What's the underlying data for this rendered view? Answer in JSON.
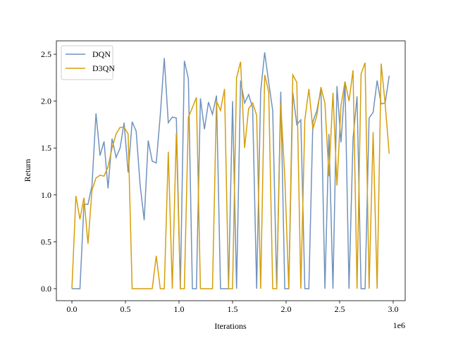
{
  "chart_data": {
    "type": "line",
    "xlabel": "Iterations",
    "ylabel": "Return",
    "x_offset_label": "1e6",
    "x": [
      0,
      0.0375,
      0.075,
      0.1125,
      0.15,
      0.1875,
      0.225,
      0.2625,
      0.3,
      0.3375,
      0.375,
      0.4125,
      0.45,
      0.4875,
      0.525,
      0.5625,
      0.6,
      0.6375,
      0.675,
      0.7125,
      0.75,
      0.7875,
      0.825,
      0.8625,
      0.9,
      0.9375,
      0.975,
      1.0125,
      1.05,
      1.0875,
      1.125,
      1.1625,
      1.2,
      1.2375,
      1.275,
      1.3125,
      1.35,
      1.3875,
      1.425,
      1.4625,
      1.5,
      1.5375,
      1.575,
      1.6125,
      1.65,
      1.6875,
      1.725,
      1.7625,
      1.8,
      1.8375,
      1.875,
      1.9125,
      1.95,
      1.9875,
      2.025,
      2.0625,
      2.1,
      2.1375,
      2.175,
      2.2125,
      2.25,
      2.2875,
      2.325,
      2.3625,
      2.4,
      2.4375,
      2.475,
      2.5125,
      2.55,
      2.5875,
      2.625,
      2.6625,
      2.7,
      2.7375,
      2.775,
      2.8125,
      2.85,
      2.8875,
      2.925,
      2.9625
    ],
    "series": [
      {
        "name": "DQN",
        "color": "#7092be",
        "values": [
          0,
          0,
          0,
          0.9,
          0.9,
          1.1,
          1.87,
          1.42,
          1.57,
          1.07,
          1.6,
          1.4,
          1.5,
          1.77,
          1.24,
          1.78,
          1.68,
          1.1,
          0.73,
          1.58,
          1.36,
          1.34,
          1.85,
          2.46,
          1.77,
          1.83,
          1.82,
          0,
          2.43,
          2.24,
          0,
          0,
          2.03,
          1.7,
          1.99,
          1.86,
          2.06,
          0,
          0,
          0,
          2.0,
          0,
          2.22,
          1.98,
          2.07,
          1.93,
          0,
          2.1,
          2.52,
          2.2,
          1.9,
          0,
          2.1,
          0,
          0,
          2.09,
          1.75,
          1.8,
          0,
          0,
          1.78,
          1.9,
          2.13,
          0,
          1.65,
          0,
          2.16,
          1.56,
          2.2,
          0,
          1.6,
          2.05,
          0,
          0,
          1.82,
          1.88,
          2.22,
          1.97,
          1.98,
          2.27
        ]
      },
      {
        "name": "D3QN",
        "color": "#d69e0c",
        "values": [
          0,
          0.99,
          0.74,
          0.97,
          0.48,
          1.05,
          1.18,
          1.21,
          1.2,
          1.3,
          1.5,
          1.65,
          1.72,
          1.72,
          1.65,
          0,
          0,
          0,
          0,
          0,
          0,
          0.35,
          0,
          0,
          1.46,
          0,
          1.66,
          0,
          0,
          1.83,
          1.93,
          2.04,
          0,
          0,
          0,
          0,
          2.0,
          1.9,
          2.13,
          0,
          0,
          2.25,
          2.42,
          1.5,
          1.92,
          1.98,
          1.85,
          0,
          2.28,
          2.1,
          0,
          0,
          1.97,
          1.2,
          0,
          2.28,
          2.2,
          0,
          1.8,
          2.13,
          1.7,
          1.85,
          2.15,
          1.98,
          1.2,
          2.09,
          1.1,
          1.95,
          2.21,
          2.0,
          2.33,
          0,
          2.29,
          2.41,
          0,
          1.67,
          0,
          2.4,
          1.97,
          1.44
        ]
      }
    ],
    "xlim": [
      -0.145,
      3.112
    ],
    "ylim": [
      -0.128,
      2.643
    ],
    "xticks": [
      {
        "value": 0,
        "label": "0.0"
      },
      0.5,
      {
        "value": 1,
        "label": "1.0"
      },
      1.5,
      {
        "value": 2,
        "label": "2.0"
      },
      2.5,
      {
        "value": 3,
        "label": "3.0"
      }
    ],
    "yticks": [
      {
        "value": 0,
        "label": "0.0"
      },
      0.5,
      {
        "value": 1,
        "label": "1.0"
      },
      1.5,
      {
        "value": 2,
        "label": "2.0"
      },
      2.5
    ],
    "legend": "upper left"
  }
}
